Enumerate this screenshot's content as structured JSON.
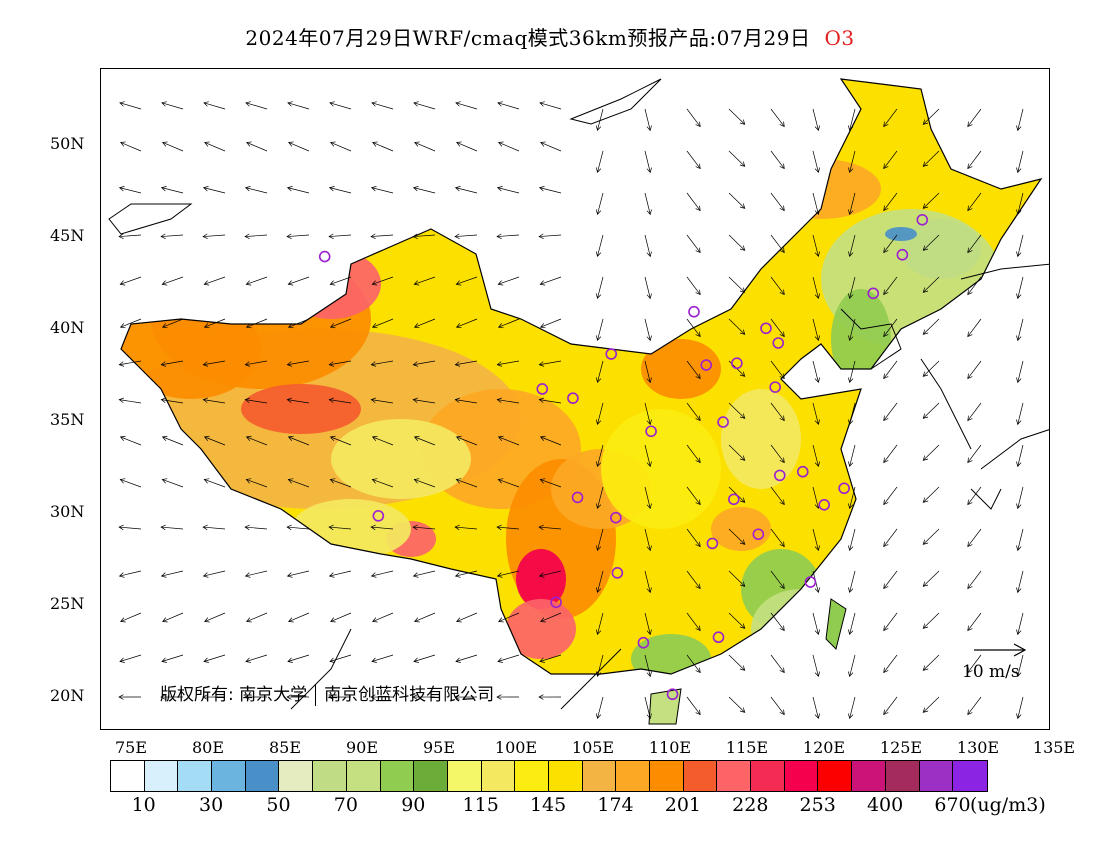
{
  "title": {
    "text": "2024年07月29日WRF/cmaq模式36km预报产品:07月29日",
    "pollutant": "O3",
    "pollutant_color": "#e02020"
  },
  "axes": {
    "lat_labels": [
      "50N",
      "45N",
      "40N",
      "35N",
      "30N",
      "25N",
      "20N"
    ],
    "lon_labels": [
      "75E",
      "80E",
      "85E",
      "90E",
      "95E",
      "100E",
      "105E",
      "110E",
      "115E",
      "120E",
      "125E",
      "130E",
      "135E"
    ]
  },
  "wind_scale": {
    "label": "10 m/s"
  },
  "copyright": {
    "prefix": "版权所有:",
    "org1": "南京大学",
    "org2": "南京创蓝科技有限公司"
  },
  "legend": {
    "colors": [
      "#ffffff",
      "#d8f0fc",
      "#a4dcf6",
      "#6cb4e0",
      "#4a90c8",
      "#e4ecc0",
      "#c0dc84",
      "#c4e080",
      "#90cc50",
      "#6cac38",
      "#f4f868",
      "#f4e860",
      "#fcec10",
      "#fce000",
      "#f4b444",
      "#fca824",
      "#fc8c00",
      "#f45c2c",
      "#fc6468",
      "#f42c54",
      "#f4004c",
      "#fc0000",
      "#cc1478",
      "#a42c5c",
      "#9c30c4",
      "#8c24e4"
    ],
    "labels": [
      "10",
      "30",
      "50",
      "70",
      "90",
      "115",
      "145",
      "174",
      "201",
      "228",
      "253",
      "400",
      "670"
    ],
    "unit": "(ug/m3)"
  },
  "stations": [
    [
      87.6,
      43.8
    ],
    [
      91.1,
      29.7
    ],
    [
      101.8,
      36.6
    ],
    [
      103.8,
      36.1
    ],
    [
      106.3,
      38.5
    ],
    [
      104.1,
      30.7
    ],
    [
      106.6,
      29.6
    ],
    [
      106.7,
      26.6
    ],
    [
      102.7,
      25.0
    ],
    [
      108.4,
      22.8
    ],
    [
      110.3,
      20.0
    ],
    [
      113.3,
      23.1
    ],
    [
      108.9,
      34.3
    ],
    [
      111.7,
      40.8
    ],
    [
      112.5,
      37.9
    ],
    [
      114.5,
      38.0
    ],
    [
      116.4,
      39.9
    ],
    [
      117.2,
      39.1
    ],
    [
      117.0,
      36.7
    ],
    [
      113.6,
      34.8
    ],
    [
      114.3,
      30.6
    ],
    [
      112.9,
      28.2
    ],
    [
      115.9,
      28.7
    ],
    [
      117.3,
      31.9
    ],
    [
      118.8,
      32.1
    ],
    [
      120.2,
      30.3
    ],
    [
      121.5,
      31.2
    ],
    [
      119.3,
      26.1
    ],
    [
      123.4,
      41.8
    ],
    [
      125.3,
      43.9
    ],
    [
      126.6,
      45.8
    ]
  ]
}
